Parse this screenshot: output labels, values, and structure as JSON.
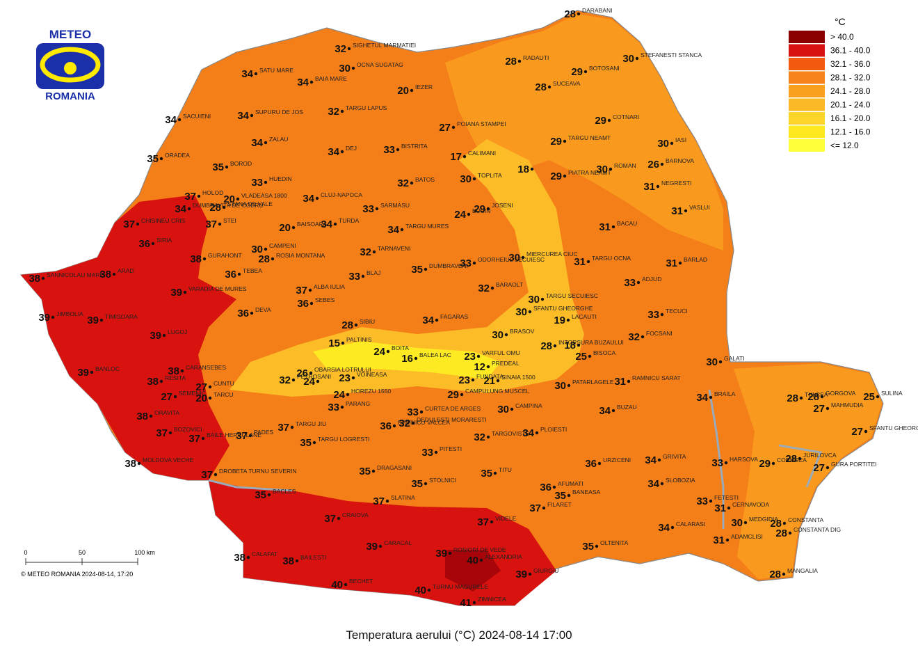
{
  "header": {
    "logo_top": "METEO",
    "logo_bottom": "ROMANIA"
  },
  "title": "Temperatura aerului (°C) 2024-08-14 17:00",
  "copyright": "© METEO ROMANIA 2024-08-14, 17:20",
  "scale": {
    "labels": [
      "0",
      "50",
      "100 km"
    ]
  },
  "legend": {
    "unit": "°C",
    "classes": [
      {
        "label": "> 40.0",
        "color": "#8b0000"
      },
      {
        "label": "36.1 - 40.0",
        "color": "#d7120f"
      },
      {
        "label": "32.1 - 36.0",
        "color": "#f25a10"
      },
      {
        "label": "28.1 - 32.0",
        "color": "#f7841a"
      },
      {
        "label": "24.1 - 28.0",
        "color": "#f9a01e"
      },
      {
        "label": "20.1 - 24.0",
        "color": "#fbb927"
      },
      {
        "label": "16.1 - 20.0",
        "color": "#fdd52a"
      },
      {
        "label": "12.1 - 16.0",
        "color": "#fde81e"
      },
      {
        "label": "<= 12.0",
        "color": "#ffff3a"
      }
    ]
  },
  "stations": [
    {
      "name": "DARABANI",
      "value": 28
    },
    {
      "name": "SIGHETUL MARMATIEI",
      "value": 32
    },
    {
      "name": "OCNA SUGATAG",
      "value": 30
    },
    {
      "name": "RADAUTI",
      "value": 28
    },
    {
      "name": "STEFANESTI STANCA",
      "value": 30
    },
    {
      "name": "SATU MARE",
      "value": 34
    },
    {
      "name": "BAIA MARE",
      "value": 34
    },
    {
      "name": "BOTOSANI",
      "value": 29
    },
    {
      "name": "SUCEAVA",
      "value": 28
    },
    {
      "name": "IEZER",
      "value": 20
    },
    {
      "name": "TARGU LAPUS",
      "value": 32
    },
    {
      "name": "SUPURU DE JOS",
      "value": 34
    },
    {
      "name": "SACUIENI",
      "value": 34
    },
    {
      "name": "POIANA STAMPEI",
      "value": 27
    },
    {
      "name": "COTNARI",
      "value": 29
    },
    {
      "name": "TARGU NEAMT",
      "value": 29
    },
    {
      "name": "ZALAU",
      "value": 34
    },
    {
      "name": "DEJ",
      "value": 34
    },
    {
      "name": "BISTRITA",
      "value": 33
    },
    {
      "name": "CALIMANI",
      "value": 17
    },
    {
      "name": "IASI",
      "value": 30
    },
    {
      "name": "ORADEA",
      "value": 35
    },
    {
      "name": "BOROD",
      "value": 35
    },
    {
      "value": 18
    },
    {
      "name": "PIATRA NEAMT",
      "value": 29
    },
    {
      "name": "ROMAN",
      "value": 30
    },
    {
      "name": "BARNOVA",
      "value": 26
    },
    {
      "name": "HUEDIN",
      "value": 33
    },
    {
      "name": "VLADEASA 1800",
      "value": 20
    },
    {
      "name": "TOPLITA",
      "value": 30
    },
    {
      "name": "BATOS",
      "value": 32
    },
    {
      "name": "NEGRESTI",
      "value": 31
    },
    {
      "name": "HOLOD",
      "value": 37
    },
    {
      "name": "CLUJ-NAPOCA",
      "value": 34
    },
    {
      "name": "SARMASU",
      "value": 33
    },
    {
      "name": "STANA DE VALE",
      "value": 28
    },
    {
      "name": "CHISINEU CRIS",
      "value": 37
    },
    {
      "name": "DUMBRAVITA DE CODRU",
      "value": 34
    },
    {
      "name": "STEI",
      "value": 37
    },
    {
      "name": "BUCIN",
      "value": 24
    },
    {
      "name": "JOSENI",
      "value": 29
    },
    {
      "name": "VASLUI",
      "value": 31
    },
    {
      "name": "BAISOARA",
      "value": 20
    },
    {
      "name": "TURDA",
      "value": 34
    },
    {
      "name": "TARGU MURES",
      "value": 34
    },
    {
      "name": "BACAU",
      "value": 31
    },
    {
      "name": "CAMPENI",
      "value": 30
    },
    {
      "name": "ROSIA MONTANA",
      "value": 28
    },
    {
      "name": "TARNAVENI",
      "value": 32
    },
    {
      "name": "ODORHEIUL SECUIESC",
      "value": 33
    },
    {
      "name": "MIERCUREA CIUC",
      "value": 30
    },
    {
      "name": "SIRIA",
      "value": 36
    },
    {
      "name": "GURAHONT",
      "value": 38
    },
    {
      "name": "TARGU OCNA",
      "value": 31
    },
    {
      "name": "BARLAD",
      "value": 31
    },
    {
      "name": "SANNICOLAU MARE",
      "value": 38
    },
    {
      "name": "ARAD",
      "value": 38
    },
    {
      "name": "TEBEA",
      "value": 36
    },
    {
      "name": "DUMBRAVENI",
      "value": 35
    },
    {
      "name": "BLAJ",
      "value": 33
    },
    {
      "name": "ADJUD",
      "value": 33
    },
    {
      "name": "VARADIA DE MURES",
      "value": 39
    },
    {
      "name": "ALBA IULIA",
      "value": 37
    },
    {
      "name": "BARAOLT",
      "value": 32
    },
    {
      "name": "SEBES",
      "value": 36
    },
    {
      "name": "TARGU SECUIESC",
      "value": 30
    },
    {
      "name": "JIMBOLIA",
      "value": 39
    },
    {
      "name": "TIMISOARA",
      "value": 39
    },
    {
      "name": "DEVA",
      "value": 36
    },
    {
      "name": "SFANTU GHEORGHE",
      "value": 30
    },
    {
      "name": "TECUCI",
      "value": 33
    },
    {
      "name": "FAGARAS",
      "value": 34
    },
    {
      "name": "LACAUTI",
      "value": 19
    },
    {
      "name": "SIBIU",
      "value": 28
    },
    {
      "name": "LUGOJ",
      "value": 39
    },
    {
      "name": "BRASOV",
      "value": 30
    },
    {
      "name": "INTORSURA BUZAULUI",
      "value": 28
    },
    {
      "name": "FOCSANI",
      "value": 32
    },
    {
      "name": "PALTINIS",
      "value": 15
    },
    {
      "name": "BOITA",
      "value": 24
    },
    {
      "name": "BALEA LAC",
      "value": 16
    },
    {
      "value": 18
    },
    {
      "name": "BISOCA",
      "value": 25
    },
    {
      "name": "VARFUL OMU",
      "value": 23
    },
    {
      "name": "GALATI",
      "value": 30
    },
    {
      "name": "PREDEAL",
      "value": 12
    },
    {
      "name": "SINAIA 1500",
      "value": 21
    },
    {
      "name": "BANLOC",
      "value": 39
    },
    {
      "name": "CARANSEBES",
      "value": 38
    },
    {
      "name": "OBARSIA LOTRULUI",
      "value": 26
    },
    {
      "value": 24
    },
    {
      "name": "PETROSANI",
      "value": 32
    },
    {
      "name": "VOINEASA",
      "value": 23
    },
    {
      "name": "FUNDATA",
      "value": 23
    },
    {
      "name": "RAMNICU SARAT",
      "value": 31
    },
    {
      "name": "RESITA",
      "value": 38
    },
    {
      "name": "CUNTU",
      "value": 27
    },
    {
      "name": "TARCU",
      "value": 20
    },
    {
      "name": "SEMENIC",
      "value": 27
    },
    {
      "name": "CAMPULUNG MUSCEL",
      "value": 29
    },
    {
      "name": "PATARLAGELE",
      "value": 30
    },
    {
      "name": "HOREZU 1550",
      "value": 24
    },
    {
      "name": "PARANG",
      "value": 33
    },
    {
      "name": "TULCEA",
      "value": 28
    },
    {
      "name": "GORGOVA",
      "value": 28
    },
    {
      "name": "MAHMUDIA",
      "value": 27
    },
    {
      "name": "SULINA",
      "value": 25
    },
    {
      "name": "BRAILA",
      "value": 34
    },
    {
      "name": "BUZAU",
      "value": 34
    },
    {
      "name": "CAMPINA",
      "value": 30
    },
    {
      "name": "ORAVITA",
      "value": 38
    },
    {
      "name": "TARGU JIU",
      "value": 37
    },
    {
      "name": "PADES",
      "value": 37
    },
    {
      "name": "BOZOVICI",
      "value": 37
    },
    {
      "name": "BAILE HERCULANE",
      "value": 37
    },
    {
      "name": "RAMNICU VALCEA",
      "value": 36
    },
    {
      "name": "DEDULESTI MORARESTI",
      "value": 32
    },
    {
      "name": "CURTEA DE ARGES",
      "value": 33
    },
    {
      "name": "TARGU LOGRESTI",
      "value": 35
    },
    {
      "name": "PITESTI",
      "value": 33
    },
    {
      "name": "TARGOVISTE",
      "value": 32
    },
    {
      "name": "PLOIESTI",
      "value": 34
    },
    {
      "name": "SFANTU GHEORGHE",
      "value": 27
    },
    {
      "name": "URZICENI",
      "value": 36
    },
    {
      "name": "GRIVITA",
      "value": 34
    },
    {
      "name": "HARSOVA",
      "value": 33
    },
    {
      "name": "CORUGEA",
      "value": 29
    },
    {
      "name": "JURILOVCA",
      "value": 28
    },
    {
      "name": "GURA PORTITEI",
      "value": 27
    },
    {
      "name": "MOLDOVA VECHE",
      "value": 38
    },
    {
      "name": "DROBETA TURNU SEVERIN",
      "value": 37
    },
    {
      "name": "DRAGASANI",
      "value": 35
    },
    {
      "name": "TITU",
      "value": 35
    },
    {
      "name": "SLOBOZIA",
      "value": 34
    },
    {
      "name": "BACLES",
      "value": 35
    },
    {
      "name": "STOLNICI",
      "value": 35
    },
    {
      "name": "AFUMATI",
      "value": 36
    },
    {
      "name": "BANEASA",
      "value": 35
    },
    {
      "name": "SLATINA",
      "value": 37
    },
    {
      "name": "FILARET",
      "value": 37
    },
    {
      "name": "FETESTI",
      "value": 33
    },
    {
      "name": "CERNAVODA",
      "value": 31
    },
    {
      "name": "CRAIOVA",
      "value": 37
    },
    {
      "name": "VIDELE",
      "value": 37
    },
    {
      "name": "CALARASI",
      "value": 34
    },
    {
      "name": "MEDGIDIA",
      "value": 30
    },
    {
      "name": "CONSTANTA",
      "value": 28
    },
    {
      "name": "CONSTANTA DIG",
      "value": 28
    },
    {
      "name": "ADAMCLISI",
      "value": 31
    },
    {
      "name": "CARACAL",
      "value": 39
    },
    {
      "name": "ROSIORI DE VEDE",
      "value": 39
    },
    {
      "name": "OLTENITA",
      "value": 35
    },
    {
      "name": "CALAFAT",
      "value": 38
    },
    {
      "name": "BAILESTI",
      "value": 38
    },
    {
      "name": "ALEXANDRIA",
      "value": 40
    },
    {
      "name": "GIURGIU",
      "value": 39
    },
    {
      "name": "MANGALIA",
      "value": 28
    },
    {
      "name": "BECHET",
      "value": 40
    },
    {
      "name": "TURNU MAGURELE",
      "value": 40
    },
    {
      "name": "ZIMNICEA",
      "value": 41
    }
  ]
}
